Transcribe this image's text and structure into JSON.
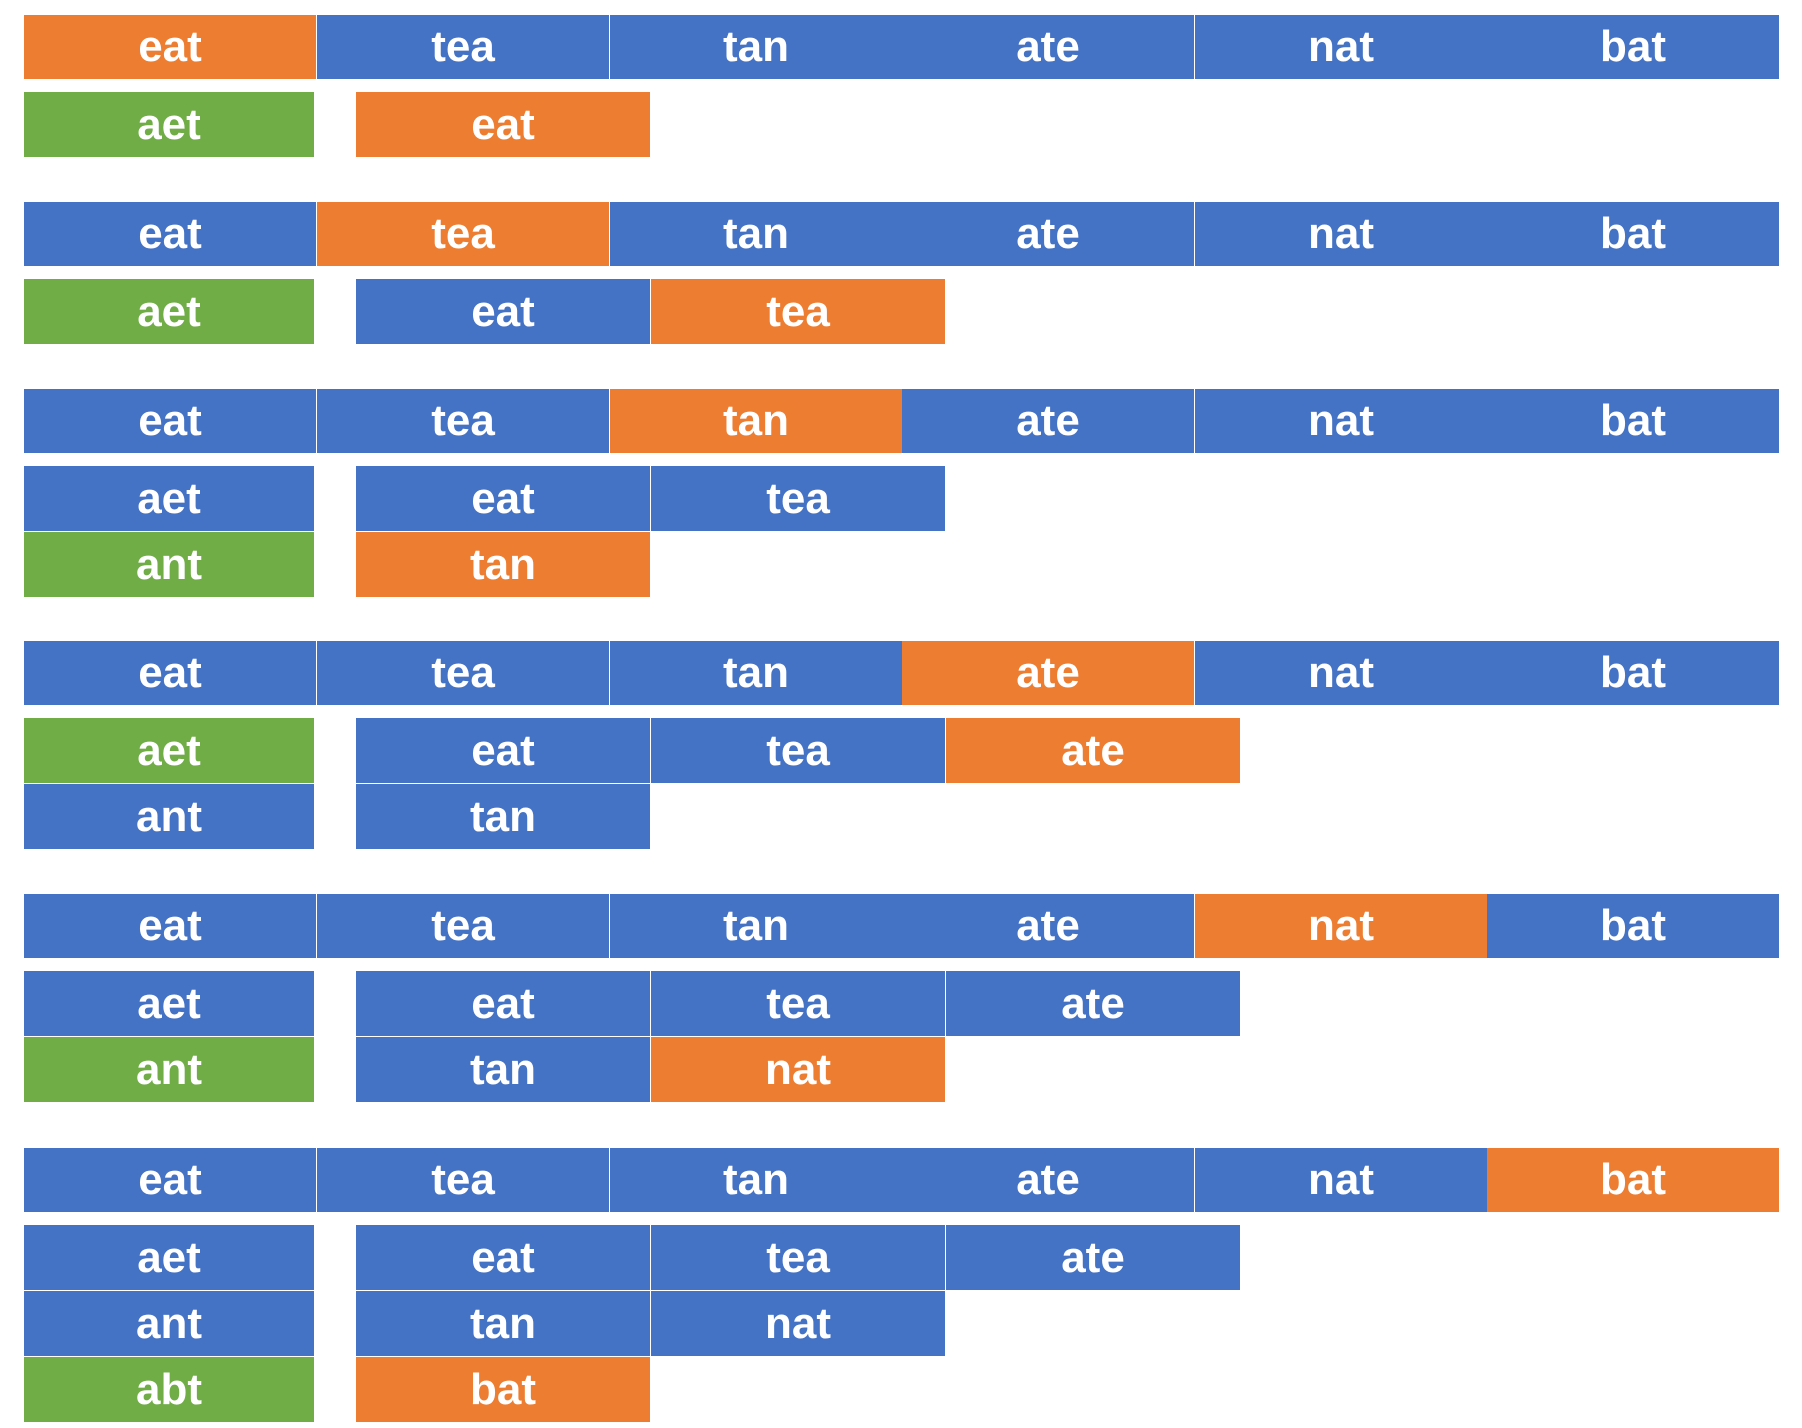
{
  "colors": {
    "default": "#4472C4",
    "current": "#ED7D31",
    "key": "#70AD47"
  },
  "steps": [
    {
      "words": [
        "eat",
        "tea",
        "tan",
        "ate",
        "nat",
        "bat"
      ],
      "current_index": 0,
      "groups": [
        {
          "key": "aet",
          "highlight": true,
          "members": [
            "eat"
          ],
          "new_index": 0
        }
      ]
    },
    {
      "words": [
        "eat",
        "tea",
        "tan",
        "ate",
        "nat",
        "bat"
      ],
      "current_index": 1,
      "groups": [
        {
          "key": "aet",
          "highlight": true,
          "members": [
            "eat",
            "tea"
          ],
          "new_index": 1
        }
      ]
    },
    {
      "words": [
        "eat",
        "tea",
        "tan",
        "ate",
        "nat",
        "bat"
      ],
      "current_index": 2,
      "groups": [
        {
          "key": "aet",
          "highlight": false,
          "members": [
            "eat",
            "tea"
          ],
          "new_index": -1
        },
        {
          "key": "ant",
          "highlight": true,
          "members": [
            "tan"
          ],
          "new_index": 0
        }
      ]
    },
    {
      "words": [
        "eat",
        "tea",
        "tan",
        "ate",
        "nat",
        "bat"
      ],
      "current_index": 3,
      "groups": [
        {
          "key": "aet",
          "highlight": true,
          "members": [
            "eat",
            "tea",
            "ate"
          ],
          "new_index": 2
        },
        {
          "key": "ant",
          "highlight": false,
          "members": [
            "tan"
          ],
          "new_index": -1
        }
      ]
    },
    {
      "words": [
        "eat",
        "tea",
        "tan",
        "ate",
        "nat",
        "bat"
      ],
      "current_index": 4,
      "groups": [
        {
          "key": "aet",
          "highlight": false,
          "members": [
            "eat",
            "tea",
            "ate"
          ],
          "new_index": -1
        },
        {
          "key": "ant",
          "highlight": true,
          "members": [
            "tan",
            "nat"
          ],
          "new_index": 1
        }
      ]
    },
    {
      "words": [
        "eat",
        "tea",
        "tan",
        "ate",
        "nat",
        "bat"
      ],
      "current_index": 5,
      "groups": [
        {
          "key": "aet",
          "highlight": false,
          "members": [
            "eat",
            "tea",
            "ate"
          ],
          "new_index": -1
        },
        {
          "key": "ant",
          "highlight": false,
          "members": [
            "tan",
            "nat"
          ],
          "new_index": -1
        },
        {
          "key": "abt",
          "highlight": true,
          "members": [
            "bat"
          ],
          "new_index": 0
        }
      ]
    }
  ]
}
